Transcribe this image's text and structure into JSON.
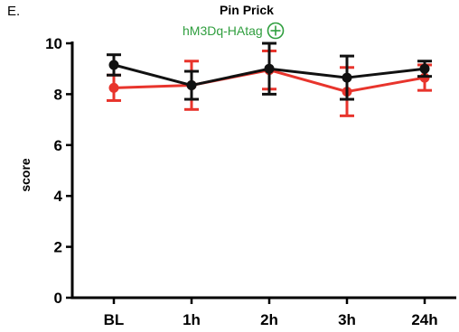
{
  "panel_label": "E.",
  "colors": {
    "red": "#e8342c",
    "black": "#111111",
    "green": "#2f9e3e"
  },
  "subtitle_icon": "circle-plus-icon",
  "chart_data": {
    "type": "line",
    "title": "Pin Prick",
    "subtitle": "hM3Dq-HAtag",
    "xlabel": "",
    "ylabel": "score",
    "categories": [
      "BL",
      "1h",
      "2h",
      "3h",
      "24h"
    ],
    "ylim": [
      0,
      10
    ],
    "yticks": [
      0,
      2,
      4,
      6,
      8,
      10
    ],
    "grid": false,
    "series": [
      {
        "color": "#e8342c",
        "values": [
          8.25,
          8.35,
          8.95,
          8.1,
          8.65
        ],
        "err": [
          0.5,
          0.95,
          0.75,
          0.95,
          0.5
        ]
      },
      {
        "color": "#111111",
        "values": [
          9.15,
          8.35,
          9.0,
          8.65,
          9.0
        ],
        "err": [
          0.4,
          0.55,
          1.0,
          0.85,
          0.3
        ]
      }
    ]
  }
}
